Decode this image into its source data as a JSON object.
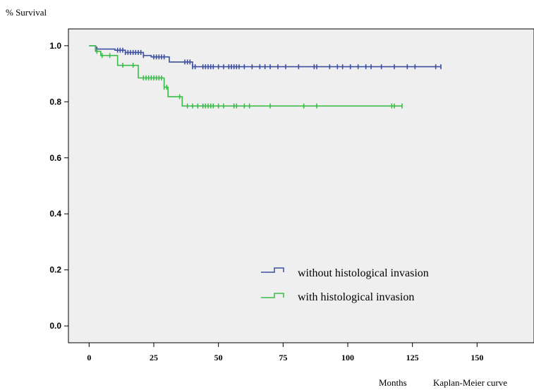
{
  "chart_data": {
    "type": "line",
    "subtype": "kaplan-meier",
    "ylabel": "% Survival",
    "xlabel": "Months",
    "caption": "Kaplan-Meier curve",
    "xlim": [
      -8,
      172
    ],
    "ylim": [
      -0.06,
      1.06
    ],
    "x_ticks": [
      "0",
      "25",
      "50",
      "75",
      "100",
      "125",
      "150"
    ],
    "y_ticks": [
      "0.0",
      "0.2",
      "0.4",
      "0.6",
      "0.8",
      "1.0"
    ],
    "x_tick_values": [
      0,
      25,
      50,
      75,
      100,
      125,
      150
    ],
    "y_tick_values": [
      0.0,
      0.2,
      0.4,
      0.6,
      0.8,
      1.0
    ],
    "grid": false,
    "plot_background": "#efefef",
    "legend_position": "bottom-center",
    "series": [
      {
        "name": "without histological invasion",
        "color": "#3c4fa0",
        "steps": [
          [
            0,
            1.0
          ],
          [
            2.5,
            0.988
          ],
          [
            10,
            0.984
          ],
          [
            14,
            0.976
          ],
          [
            21,
            0.965
          ],
          [
            24,
            0.96
          ],
          [
            31,
            0.942
          ],
          [
            40,
            0.925
          ],
          [
            136,
            0.925
          ]
        ],
        "censored": [
          2.5,
          3,
          11,
          12,
          13,
          14,
          15,
          16,
          17,
          18,
          19,
          20,
          21,
          25,
          26,
          27,
          28,
          29,
          37,
          38,
          39,
          40,
          41,
          44,
          45,
          46,
          47,
          48,
          50,
          52,
          54,
          55,
          56,
          57,
          58,
          60,
          63,
          66,
          68,
          70,
          73,
          76,
          81,
          87,
          88,
          93,
          96,
          98,
          101,
          104,
          107,
          109,
          113,
          118,
          123,
          126,
          134,
          136
        ]
      },
      {
        "name": "with histological invasion",
        "color": "#3dbb4a",
        "steps": [
          [
            0,
            1.0
          ],
          [
            2.5,
            0.98
          ],
          [
            4.5,
            0.965
          ],
          [
            11,
            0.93
          ],
          [
            19,
            0.885
          ],
          [
            29,
            0.852
          ],
          [
            30.5,
            0.818
          ],
          [
            36,
            0.785
          ],
          [
            121,
            0.785
          ]
        ],
        "censored": [
          3,
          5,
          8,
          13,
          17,
          21,
          22,
          23,
          24,
          25,
          26,
          27,
          28,
          29,
          30,
          35,
          38,
          40,
          42,
          44,
          45,
          46,
          47,
          48,
          50,
          52,
          56,
          57,
          60,
          62,
          70,
          83,
          88,
          117,
          118,
          121
        ]
      }
    ]
  }
}
